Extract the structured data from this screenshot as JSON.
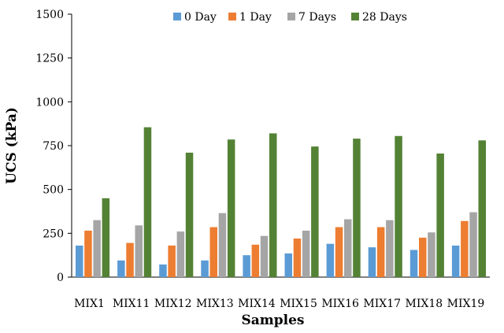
{
  "chart_data": {
    "type": "bar",
    "title": "",
    "xlabel": "Samples",
    "ylabel": "UCS (kPa)",
    "ylim": [
      0,
      1500
    ],
    "yticks": [
      0,
      250,
      500,
      750,
      1000,
      1250,
      1500
    ],
    "grid": false,
    "legend_position": "top",
    "categories": [
      "MIX1",
      "MIX11",
      "MIX12",
      "MIX13",
      "MIX14",
      "MIX15",
      "MIX16",
      "MIX17",
      "MIX18",
      "MIX19"
    ],
    "series": [
      {
        "name": "0 Day",
        "color": "#5B9BD5",
        "values": [
          180,
          95,
          72,
          95,
          125,
          135,
          190,
          170,
          155,
          180
        ]
      },
      {
        "name": "1 Day",
        "color": "#ED7D31",
        "values": [
          265,
          195,
          180,
          285,
          185,
          220,
          285,
          285,
          225,
          320
        ]
      },
      {
        "name": "7 Days",
        "color": "#A5A5A5",
        "values": [
          325,
          295,
          260,
          365,
          235,
          265,
          330,
          325,
          255,
          370
        ]
      },
      {
        "name": "28 Days",
        "color": "#548235",
        "values": [
          450,
          855,
          710,
          785,
          820,
          745,
          790,
          805,
          705,
          780
        ]
      }
    ]
  }
}
